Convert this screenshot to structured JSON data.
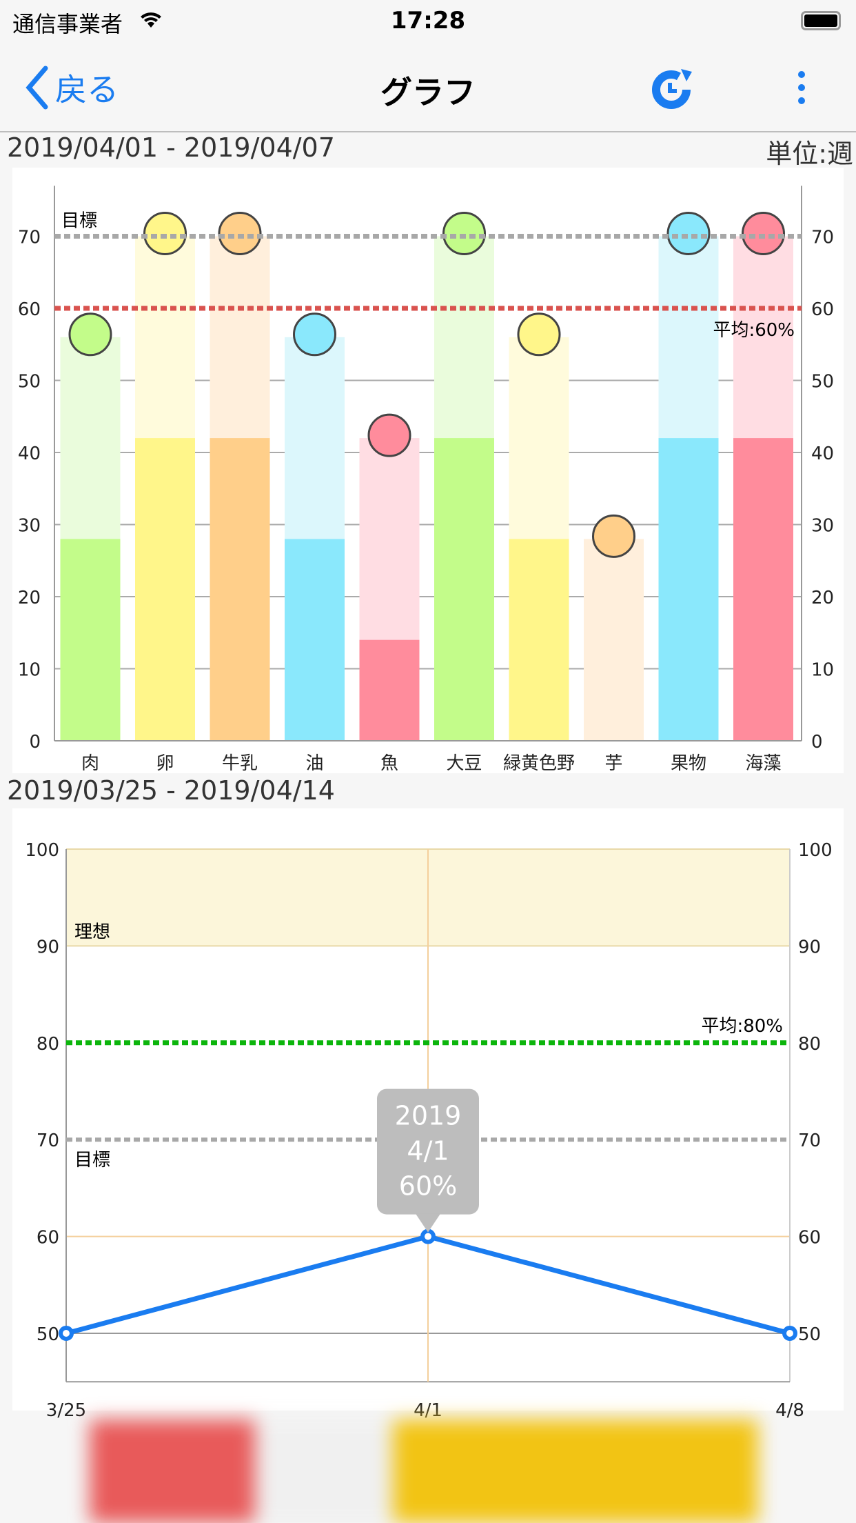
{
  "status_bar": {
    "carrier": "通信事業者",
    "time": "17:28",
    "icons": [
      "wifi-icon",
      "battery-icon"
    ]
  },
  "nav": {
    "back_label": "戻る",
    "title": "グラフ",
    "icons": [
      "chevron-left-icon",
      "history-icon",
      "more-vertical-icon"
    ],
    "accent": "#1a7cf0"
  },
  "weekly": {
    "range": "2019/04/01 - 2019/04/07",
    "unit": "単位:週"
  },
  "trend": {
    "range": "2019/03/25 - 2019/04/14"
  },
  "chart_data": [
    {
      "type": "bar",
      "categories": [
        "肉",
        "卵",
        "牛乳",
        "油",
        "魚",
        "大豆",
        "緑黄色野",
        "芋",
        "果物",
        "海藻"
      ],
      "series": [
        {
          "values": [
            28,
            42,
            42,
            28,
            14,
            42,
            28,
            0,
            42,
            42
          ]
        },
        {
          "values": [
            56,
            70,
            70,
            56,
            42,
            70,
            56,
            28,
            70,
            70
          ]
        }
      ],
      "colors": [
        "#c3fc8a",
        "#fff68a",
        "#ffcf8a",
        "#8ae8fc",
        "#ff8c9c",
        "#c3fc8a",
        "#fff68a",
        "#ffcf8a",
        "#8ae8fc",
        "#ff8c9c"
      ],
      "light_colors": [
        "#eafcdc",
        "#fffbdc",
        "#ffefdc",
        "#dcf7fc",
        "#ffdde3",
        "#eafcdc",
        "#fffbdc",
        "#ffefdc",
        "#dcf7fc",
        "#ffdde3"
      ],
      "icons": [
        "meat-icon",
        "egg-icon",
        "milk-icon",
        "oil-bottle-icon",
        "fish-icon",
        "soybean-icon",
        "vegetables-icon",
        "potato-icon",
        "fruits-icon",
        "seaweed-icon"
      ],
      "ylim": [
        0,
        77
      ],
      "yticks": [
        0,
        10,
        20,
        30,
        40,
        50,
        60,
        70
      ],
      "target": {
        "value": 70,
        "label": "目標",
        "color": "#a8a8a8"
      },
      "average": {
        "value": 60,
        "label": "平均:60%",
        "color": "#d9534f"
      },
      "grid": true
    },
    {
      "type": "line",
      "x": [
        "3/25",
        "4/1",
        "4/8"
      ],
      "values": [
        50,
        60,
        50
      ],
      "ylim": [
        45,
        100
      ],
      "yticks": [
        50,
        60,
        70,
        80,
        90,
        100
      ],
      "ideal": {
        "range": [
          90,
          100
        ],
        "label": "理想",
        "color": "#fcf6da"
      },
      "target": {
        "value": 70,
        "label": "目標",
        "color": "#a8a8a8"
      },
      "average": {
        "value": 80,
        "label": "平均:80%",
        "color": "#0cb50c"
      },
      "line_color": "#1a7cf0",
      "tooltip": {
        "year": "2019",
        "date": "4/1",
        "value": "60%"
      }
    }
  ]
}
